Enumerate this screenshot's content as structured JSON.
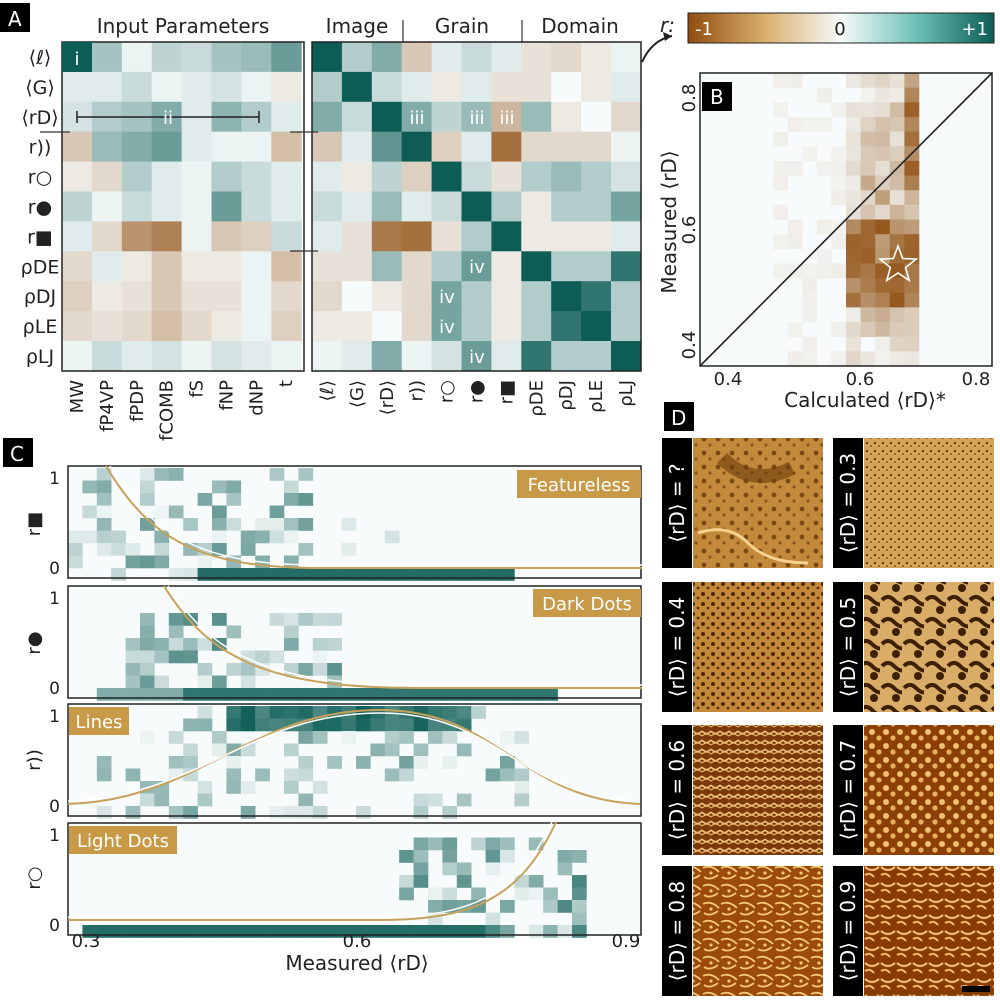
{
  "colors": {
    "neg": "#8f4e0f",
    "mid": "#f7fbfb",
    "pos": "#0d5d56",
    "curve": "#c8a25a",
    "label_bg": "#c89a48",
    "panel_bg": "#000000"
  },
  "panel_labels": {
    "a": "A",
    "b": "B",
    "c": "C",
    "d": "D"
  },
  "panelA": {
    "group_left": "Input Parameters",
    "groups_right": [
      "Image",
      "Grain",
      "Domain"
    ],
    "row_labels": [
      "⟨ℓ⟩",
      "⟨G⟩",
      "⟨rD⟩",
      "r))",
      "r○",
      "r●",
      "r■",
      "ρDE",
      "ρDJ",
      "ρLE",
      "ρLJ"
    ],
    "col_labels_left": [
      "MW",
      "fP4VP",
      "fPDP",
      "fCOMB",
      "fS",
      "fNP",
      "dNP",
      "t"
    ],
    "col_labels_right": [
      "⟨ℓ⟩",
      "⟨G⟩",
      "⟨rD⟩",
      "r))",
      "r○",
      "r●",
      "r■",
      "ρDE",
      "ρDJ",
      "ρLE",
      "ρLJ"
    ],
    "markers": [
      "i",
      "ii",
      "iii",
      "iii",
      "iii",
      "iv",
      "iv",
      "iv",
      "iv"
    ],
    "colorbar": {
      "label": "r:",
      "min": "-1",
      "mid": "0",
      "max": "+1"
    }
  },
  "panelB": {
    "xlabel": "Calculated ⟨rD⟩*",
    "ylabel": "Measured ⟨rD⟩",
    "xticks": [
      "0.4",
      "0.6",
      "0.8"
    ],
    "yticks": [
      "0.4",
      "0.6",
      "0.8"
    ]
  },
  "panelC": {
    "xlabel": "Measured ⟨rD⟩",
    "xticks": [
      "0.3",
      "0.6",
      "0.9"
    ],
    "rows": [
      {
        "ylabel": "r■",
        "tag": "Featureless",
        "yticks": [
          "1",
          "0"
        ]
      },
      {
        "ylabel": "r●",
        "tag": "Dark Dots",
        "yticks": [
          "1",
          "0"
        ]
      },
      {
        "ylabel": "r))",
        "tag": "Lines",
        "yticks": [
          "1",
          "0"
        ]
      },
      {
        "ylabel": "r○",
        "tag": "Light Dots",
        "yticks": [
          "1",
          "0"
        ]
      }
    ]
  },
  "panelD": {
    "labels": [
      "⟨rD⟩ = ?",
      "⟨rD⟩ = 0.3",
      "⟨rD⟩ = 0.4",
      "⟨rD⟩ = 0.5",
      "⟨rD⟩ = 0.6",
      "⟨rD⟩ = 0.7",
      "⟨rD⟩ = 0.8",
      "⟨rD⟩ = 0.9"
    ]
  },
  "chart_data": [
    {
      "type": "heatmap",
      "title": "",
      "rows": [
        "⟨ℓ⟩",
        "⟨G⟩",
        "⟨rD⟩",
        "r))",
        "r○",
        "r●",
        "r■",
        "ρDE",
        "ρDJ",
        "ρLE",
        "ρLJ"
      ],
      "columns": [
        "MW",
        "fP4VP",
        "fPDP",
        "fCOMB",
        "fS",
        "fNP",
        "dNP",
        "t",
        "⟨ℓ⟩",
        "⟨G⟩",
        "⟨rD⟩",
        "r))",
        "r○",
        "r●",
        "r■",
        "ρDE",
        "ρDJ",
        "ρLE",
        "ρLJ"
      ],
      "values": [
        [
          0.95,
          0.35,
          0.05,
          0.25,
          0.2,
          0.35,
          0.4,
          0.6,
          1,
          0.3,
          0.5,
          -0.3,
          0.1,
          0.2,
          0.1,
          -0.15,
          -0.2,
          -0.1,
          0.05
        ],
        [
          0.1,
          0.1,
          0.2,
          0.05,
          0.1,
          0.15,
          0.05,
          -0.1,
          0.3,
          1,
          0.2,
          0.1,
          -0.1,
          0.1,
          -0.15,
          -0.15,
          0,
          -0.1,
          0.1
        ],
        [
          0.15,
          0.3,
          0.35,
          0.5,
          0.1,
          0.45,
          0.3,
          0.1,
          0.5,
          0.2,
          1,
          0.5,
          0.25,
          0.4,
          -0.4,
          0.4,
          -0.1,
          0,
          -0.2
        ],
        [
          -0.3,
          0.4,
          0.5,
          0.6,
          0.1,
          0.05,
          0.05,
          -0.35,
          -0.3,
          0.1,
          0.65,
          1,
          -0.25,
          0.1,
          -0.8,
          -0.2,
          -0.2,
          -0.2,
          0.05
        ],
        [
          -0.1,
          -0.2,
          0.3,
          0.1,
          0.05,
          0.3,
          0.2,
          0.1,
          0.1,
          -0.1,
          0.25,
          -0.25,
          1,
          0.2,
          -0.15,
          0.3,
          0.4,
          0.3,
          0.15
        ],
        [
          0.25,
          0.05,
          0.2,
          0.1,
          0.05,
          0.6,
          0.2,
          0.1,
          0.2,
          0.1,
          0.4,
          0.1,
          0.2,
          1,
          0.3,
          -0.1,
          0.3,
          0.3,
          0.55
        ],
        [
          0.1,
          -0.2,
          -0.6,
          -0.7,
          0.05,
          -0.3,
          -0.25,
          0.2,
          0.1,
          -0.15,
          -0.75,
          -0.8,
          -0.15,
          0.3,
          1,
          -0.1,
          -0.1,
          -0.1,
          0.1
        ],
        [
          -0.2,
          0.1,
          -0.1,
          -0.3,
          -0.1,
          -0.1,
          0.05,
          -0.35,
          -0.15,
          -0.15,
          0.4,
          -0.2,
          0.3,
          0.6,
          -0.1,
          1,
          0.3,
          0.3,
          0.85
        ],
        [
          -0.25,
          -0.1,
          -0.15,
          -0.3,
          -0.15,
          -0.15,
          0.05,
          -0.2,
          -0.2,
          0,
          -0.1,
          -0.2,
          0.55,
          0.3,
          -0.1,
          0.3,
          1,
          0.85,
          0.3
        ],
        [
          -0.2,
          -0.15,
          -0.2,
          -0.35,
          -0.2,
          -0.1,
          0.05,
          -0.25,
          -0.1,
          -0.1,
          0,
          -0.2,
          0.55,
          0.3,
          -0.1,
          0.3,
          0.85,
          1,
          0.3
        ],
        [
          0.05,
          0.2,
          0.1,
          0.15,
          0.05,
          0.15,
          0.1,
          0.05,
          0.05,
          0.1,
          0.5,
          0.05,
          0.15,
          0.6,
          0.1,
          0.85,
          0.3,
          0.3,
          1
        ]
      ],
      "scale": [
        -1,
        1
      ]
    },
    {
      "type": "heatmap",
      "title": "",
      "xlabel": "Calculated ⟨rD⟩*",
      "ylabel": "Measured ⟨rD⟩",
      "xlim": [
        0.38,
        0.82
      ],
      "ylim": [
        0.38,
        0.82
      ],
      "diagonal": true,
      "star": [
        0.68,
        0.53
      ]
    },
    {
      "type": "heatmap",
      "title": "",
      "xlabel": "Measured ⟨rD⟩",
      "xlim": [
        0.3,
        0.9
      ],
      "panels": [
        "Featureless",
        "Dark Dots",
        "Lines",
        "Light Dots"
      ]
    }
  ]
}
